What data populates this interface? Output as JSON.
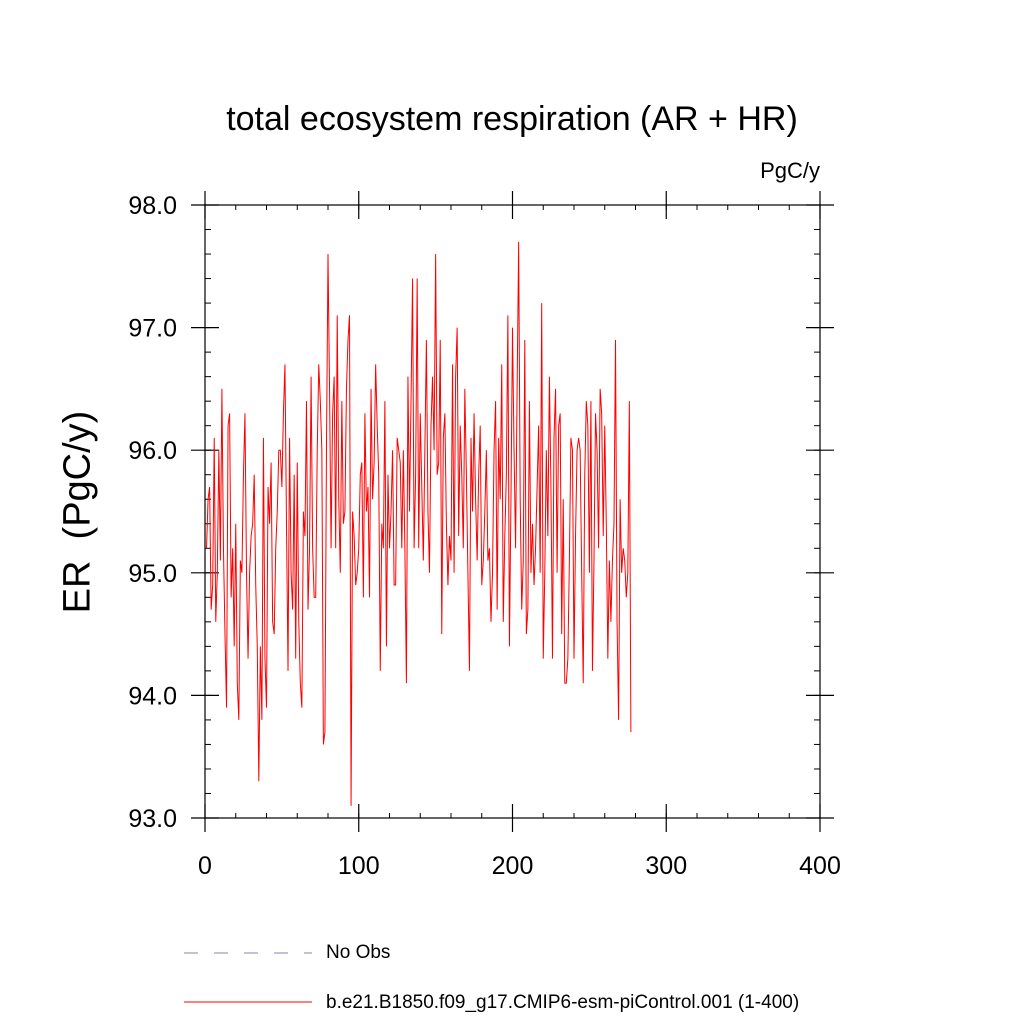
{
  "chart_data": {
    "type": "line",
    "title": "total ecosystem respiration (AR + HR)",
    "units_label": "PgC/y",
    "ylabel": "ER  (PgC/y)",
    "xlabel": "",
    "xlim": [
      0,
      400
    ],
    "ylim": [
      93.0,
      98.0
    ],
    "x_ticks": [
      0,
      100,
      200,
      300,
      400
    ],
    "x_tick_labels": [
      "0",
      "100",
      "200",
      "300",
      "400"
    ],
    "y_ticks": [
      93.0,
      94.0,
      95.0,
      96.0,
      97.0,
      98.0
    ],
    "y_tick_labels": [
      "93.0",
      "94.0",
      "95.0",
      "96.0",
      "97.0",
      "98.0"
    ],
    "grid": false,
    "legend_position": "bottom",
    "series": [
      {
        "name": "b.e21.B1850.f09_g17.CMIP6-esm-piControl.001 (1-400)",
        "color": "#ff0000",
        "x_start": 1,
        "values": [
          95.2,
          95.6,
          95.7,
          94.7,
          94.9,
          96.1,
          94.6,
          95.0,
          96.0,
          95.1,
          96.5,
          95.2,
          94.5,
          93.9,
          96.2,
          96.3,
          94.8,
          95.2,
          94.4,
          95.4,
          94.1,
          93.8,
          95.1,
          95.0,
          95.8,
          96.3,
          95.0,
          94.3,
          95.0,
          95.3,
          95.4,
          95.8,
          94.9,
          94.4,
          93.3,
          94.4,
          93.8,
          96.1,
          94.3,
          93.9,
          95.7,
          95.4,
          95.9,
          94.6,
          94.5,
          95.2,
          95.5,
          96.0,
          96.0,
          95.7,
          96.3,
          96.7,
          95.4,
          94.2,
          96.1,
          95.0,
          94.7,
          95.8,
          94.3,
          95.9,
          94.6,
          94.1,
          93.9,
          95.5,
          95.3,
          96.4,
          94.7,
          95.2,
          96.6,
          95.2,
          94.8,
          94.8,
          96.0,
          96.7,
          96.4,
          96.0,
          93.6,
          93.7,
          96.0,
          97.6,
          96.5,
          95.2,
          96.3,
          96.6,
          95.2,
          97.1,
          95.6,
          95.0,
          96.4,
          95.4,
          95.5,
          96.5,
          96.9,
          97.1,
          93.1,
          95.5,
          95.3,
          94.9,
          95.0,
          95.2,
          95.8,
          95.9,
          94.8,
          96.3,
          95.5,
          95.7,
          94.8,
          96.5,
          95.6,
          95.9,
          96.7,
          96.2,
          95.8,
          94.2,
          95.4,
          95.2,
          96.4,
          94.4,
          95.8,
          95.2,
          95.5,
          96.0,
          94.9,
          94.9,
          96.1,
          96.0,
          95.9,
          95.2,
          96.0,
          95.2,
          94.1,
          96.6,
          95.5,
          96.4,
          97.4,
          95.2,
          95.8,
          97.4,
          95.2,
          96.3,
          95.7,
          95.1,
          96.0,
          96.9,
          95.5,
          95.0,
          96.2,
          96.6,
          96.0,
          97.6,
          95.8,
          95.9,
          96.9,
          94.5,
          96.1,
          96.3,
          95.4,
          94.9,
          95.3,
          95.1,
          96.7,
          95.0,
          96.6,
          97.0,
          95.3,
          96.2,
          95.8,
          95.2,
          96.5,
          95.8,
          95.0,
          94.2,
          96.1,
          95.5,
          96.3,
          95.6,
          95.1,
          95.8,
          96.2,
          94.9,
          95.1,
          95.5,
          96.0,
          95.1,
          95.2,
          94.6,
          95.0,
          96.0,
          96.4,
          94.7,
          96.1,
          95.6,
          96.7,
          94.6,
          95.3,
          95.8,
          97.1,
          94.4,
          95.6,
          97.0,
          96.0,
          95.2,
          96.5,
          97.7,
          95.6,
          94.7,
          95.1,
          96.9,
          94.5,
          94.7,
          96.4,
          95.0,
          95.4,
          94.9,
          95.2,
          95.7,
          96.2,
          95.0,
          97.2,
          94.3,
          95.0,
          96.0,
          95.3,
          96.6,
          95.7,
          94.3,
          96.1,
          96.5,
          95.0,
          96.2,
          96.3,
          94.5,
          95.6,
          94.1,
          94.1,
          94.3,
          95.1,
          96.1,
          96.0,
          94.3,
          95.3,
          96.0,
          96.1,
          96.0,
          95.0,
          94.1,
          95.8,
          96.4,
          96.2,
          95.0,
          96.4,
          94.2,
          95.1,
          96.3,
          96.0,
          95.2,
          96.5,
          96.3,
          95.3,
          96.2,
          95.4,
          94.3,
          95.1,
          94.6,
          95.1,
          95.4,
          96.9,
          94.6,
          93.8,
          95.6,
          95.0,
          95.2,
          95.1,
          94.8,
          95.0,
          96.4,
          93.7
        ]
      }
    ],
    "reference_series": {
      "name": "No Obs",
      "color": "#8080c0",
      "style": "dashed"
    }
  },
  "legend": {
    "items": [
      {
        "label": "No Obs",
        "style": "dashed",
        "color": "#8080c0"
      },
      {
        "label": "b.e21.B1850.f09_g17.CMIP6-esm-piControl.001 (1-400)",
        "style": "solid",
        "color": "#ff0000"
      }
    ]
  }
}
